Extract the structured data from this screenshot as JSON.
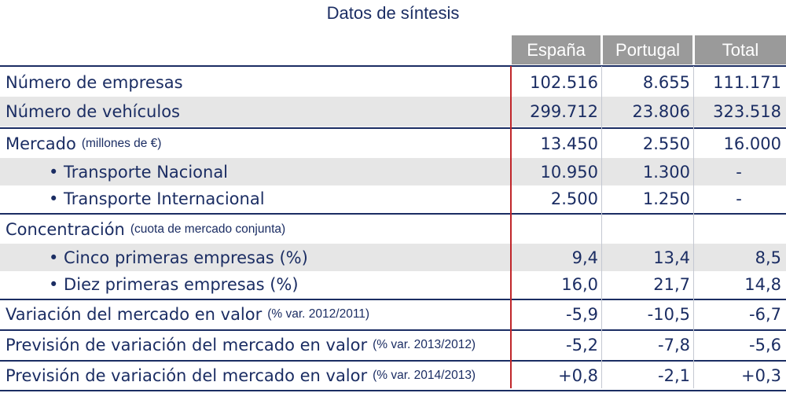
{
  "title": "Datos de síntesis",
  "columns": [
    "España",
    "Portugal",
    "Total"
  ],
  "rows": [
    {
      "label": "Número de empresas",
      "note": "",
      "values": [
        "102.516",
        "8.655",
        "111.171"
      ]
    },
    {
      "label": "Número de vehículos",
      "note": "",
      "values": [
        "299.712",
        "23.806",
        "323.518"
      ]
    },
    {
      "label": "Mercado",
      "note": "(millones de €)",
      "values": [
        "13.450",
        "2.550",
        "16.000"
      ]
    },
    {
      "label": "• Transporte Nacional",
      "note": "",
      "values": [
        "10.950",
        "1.300",
        "-"
      ]
    },
    {
      "label": "• Transporte Internacional",
      "note": "",
      "values": [
        "2.500",
        "1.250",
        "-"
      ]
    },
    {
      "label": "Concentración",
      "note": "(cuota de mercado conjunta)",
      "values": [
        "",
        "",
        ""
      ]
    },
    {
      "label": "• Cinco primeras empresas (%)",
      "note": "",
      "values": [
        "9,4",
        "13,4",
        "8,5"
      ]
    },
    {
      "label": "• Diez primeras empresas (%)",
      "note": "",
      "values": [
        "16,0",
        "21,7",
        "14,8"
      ]
    },
    {
      "label": "Variación del mercado en valor",
      "note": "(% var. 2012/2011)",
      "values": [
        "-5,9",
        "-10,5",
        "-6,7"
      ]
    },
    {
      "label": "Previsión de variación del mercado en valor",
      "note": "(% var. 2013/2012)",
      "values": [
        "-5,2",
        "-7,8",
        "-5,6"
      ]
    },
    {
      "label": "Previsión de variación del mercado en valor",
      "note": "(% var. 2014/2013)",
      "values": [
        "+0,8",
        "-2,1",
        "+0,3"
      ]
    }
  ]
}
